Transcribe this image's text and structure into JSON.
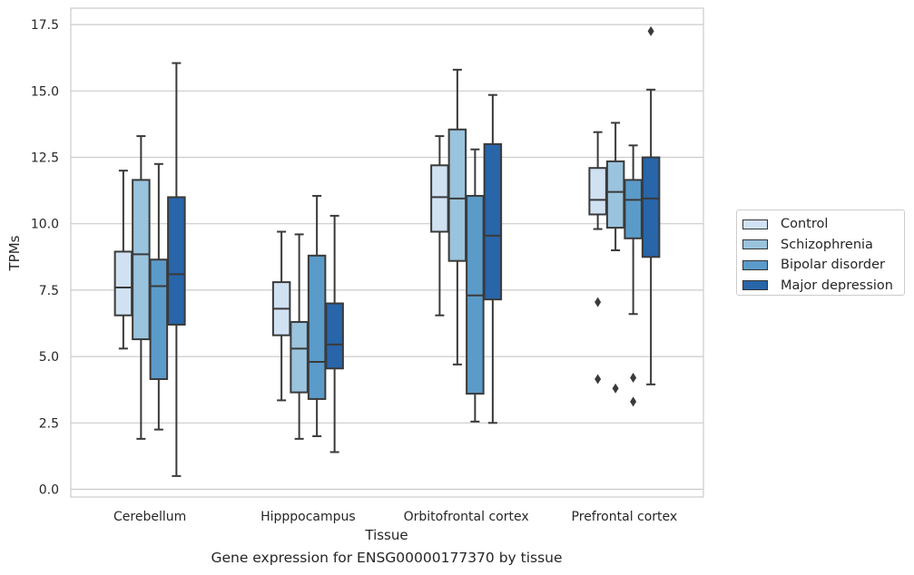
{
  "chart_data": {
    "type": "box",
    "title": "",
    "caption": "Gene expression for ENSG00000177370 by tissue",
    "xlabel": "Tissue",
    "ylabel": "TPMs",
    "ylim": [
      -0.25,
      18.1
    ],
    "yticks": [
      "0.0",
      "2.5",
      "5.0",
      "7.5",
      "10.0",
      "12.5",
      "15.0",
      "17.5"
    ],
    "grid": "horizontal",
    "legend_position": "right",
    "categories": [
      "Cerebellum",
      "Hipppocampus",
      "Orbitofrontal cortex",
      "Prefrontal cortex"
    ],
    "series": [
      {
        "name": "Control",
        "color": "#d0e1f2",
        "boxes": [
          {
            "whisker_low": 5.3,
            "q1": 6.55,
            "median": 7.6,
            "q3": 8.95,
            "whisker_high": 12.0,
            "outliers": []
          },
          {
            "whisker_low": 3.35,
            "q1": 5.8,
            "median": 6.8,
            "q3": 7.8,
            "whisker_high": 9.7,
            "outliers": []
          },
          {
            "whisker_low": 6.55,
            "q1": 9.7,
            "median": 11.0,
            "q3": 12.2,
            "whisker_high": 13.3,
            "outliers": []
          },
          {
            "whisker_low": 9.8,
            "q1": 10.35,
            "median": 10.9,
            "q3": 12.1,
            "whisker_high": 13.45,
            "outliers": [
              7.05,
              4.15
            ]
          }
        ]
      },
      {
        "name": "Schizophrenia",
        "color": "#9ac3dd",
        "boxes": [
          {
            "whisker_low": 1.9,
            "q1": 5.65,
            "median": 8.85,
            "q3": 11.65,
            "whisker_high": 13.3,
            "outliers": []
          },
          {
            "whisker_low": 1.9,
            "q1": 3.65,
            "median": 5.3,
            "q3": 6.3,
            "whisker_high": 9.6,
            "outliers": []
          },
          {
            "whisker_low": 4.7,
            "q1": 8.6,
            "median": 10.95,
            "q3": 13.55,
            "whisker_high": 15.8,
            "outliers": []
          },
          {
            "whisker_low": 9.0,
            "q1": 9.85,
            "median": 11.2,
            "q3": 12.35,
            "whisker_high": 13.8,
            "outliers": [
              3.8
            ]
          }
        ]
      },
      {
        "name": "Bipolar disorder",
        "color": "#5b9bc9",
        "boxes": [
          {
            "whisker_low": 2.25,
            "q1": 4.15,
            "median": 7.65,
            "q3": 8.65,
            "whisker_high": 12.25,
            "outliers": []
          },
          {
            "whisker_low": 2.0,
            "q1": 3.4,
            "median": 4.8,
            "q3": 8.8,
            "whisker_high": 11.05,
            "outliers": []
          },
          {
            "whisker_low": 2.55,
            "q1": 3.6,
            "median": 7.3,
            "q3": 11.05,
            "whisker_high": 12.8,
            "outliers": []
          },
          {
            "whisker_low": 6.6,
            "q1": 9.45,
            "median": 10.9,
            "q3": 11.65,
            "whisker_high": 12.95,
            "outliers": [
              4.2,
              3.3
            ]
          }
        ]
      },
      {
        "name": "Major depression",
        "color": "#2865a9",
        "boxes": [
          {
            "whisker_low": 0.5,
            "q1": 6.2,
            "median": 8.1,
            "q3": 11.0,
            "whisker_high": 16.05,
            "outliers": []
          },
          {
            "whisker_low": 1.4,
            "q1": 4.55,
            "median": 5.45,
            "q3": 7.0,
            "whisker_high": 10.3,
            "outliers": []
          },
          {
            "whisker_low": 2.5,
            "q1": 7.15,
            "median": 9.55,
            "q3": 13.0,
            "whisker_high": 14.85,
            "outliers": []
          },
          {
            "whisker_low": 3.95,
            "q1": 8.75,
            "median": 10.95,
            "q3": 12.5,
            "whisker_high": 15.05,
            "outliers": [
              17.25
            ]
          }
        ]
      }
    ]
  }
}
